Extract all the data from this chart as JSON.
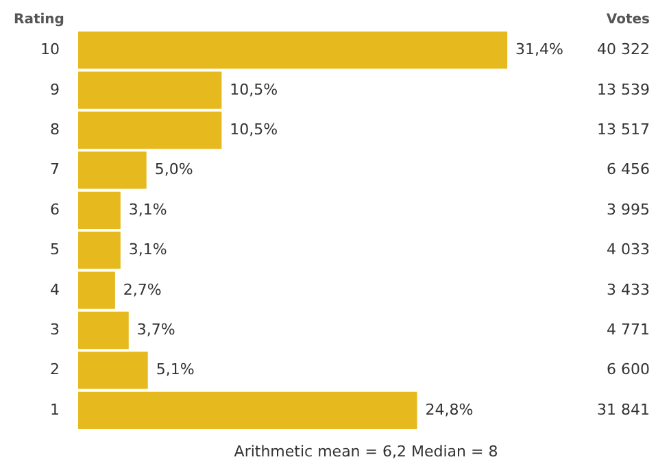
{
  "chart_data": {
    "type": "bar",
    "orientation": "horizontal",
    "ylabel": "Rating",
    "categories": [
      "10",
      "9",
      "8",
      "7",
      "6",
      "5",
      "4",
      "3",
      "2",
      "1"
    ],
    "values": [
      31.4,
      10.5,
      10.5,
      5.0,
      3.1,
      3.1,
      2.7,
      3.7,
      5.1,
      24.8
    ],
    "value_labels": [
      "31,4%",
      "10,5%",
      "10,5%",
      "5,0%",
      "3,1%",
      "3,1%",
      "2,7%",
      "3,7%",
      "5,1%",
      "24,8%"
    ],
    "color": "#e6b91e",
    "tick_labels": "y",
    "annotations": [
      "Votes",
      "40 322",
      "13 539",
      "13 517",
      "6 456",
      "3 995",
      "4 033",
      "3 433",
      "4 771",
      "6 600",
      "31 841",
      "Arithmetic mean = 6,2   Median = 8"
    ]
  }
}
